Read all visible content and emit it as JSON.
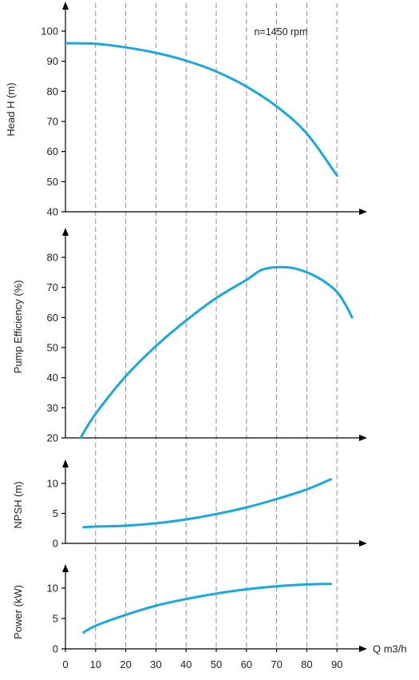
{
  "chart_data": [
    {
      "type": "line",
      "ylabel": "Head H (m)",
      "annotation": "n=1450 rpm",
      "ylim": [
        40,
        100
      ],
      "yticks": [
        "40",
        "50",
        "60",
        "70",
        "80",
        "90",
        "100"
      ],
      "series": [
        {
          "x": [
            0,
            10,
            20,
            30,
            40,
            50,
            60,
            70,
            80,
            90
          ],
          "y": [
            96,
            95.8,
            94.6,
            92.8,
            90.2,
            86.6,
            81.6,
            75,
            66,
            52
          ]
        }
      ]
    },
    {
      "type": "line",
      "ylabel": "Pump Efficiency (%)",
      "ylim": [
        20,
        85
      ],
      "yticks": [
        "20",
        "30",
        "40",
        "50",
        "60",
        "70",
        "80"
      ],
      "series": [
        {
          "x": [
            5,
            10,
            20,
            30,
            40,
            50,
            60,
            65,
            70,
            75,
            80,
            85,
            90,
            93,
            95
          ],
          "y": [
            20,
            28,
            40.5,
            50.5,
            59,
            66.5,
            72.5,
            75.8,
            76.7,
            76.5,
            75,
            72.5,
            68.5,
            64,
            60
          ]
        }
      ]
    },
    {
      "type": "line",
      "ylabel": "NPSH (m)",
      "ylim": [
        0,
        13
      ],
      "yticks": [
        "0",
        "5",
        "10"
      ],
      "series": [
        {
          "x": [
            6,
            10,
            20,
            30,
            40,
            50,
            60,
            70,
            80,
            88
          ],
          "y": [
            2.7,
            2.8,
            2.95,
            3.35,
            4,
            4.9,
            6,
            7.4,
            9,
            10.7
          ]
        }
      ]
    },
    {
      "type": "line",
      "ylabel": "Power (kW)",
      "ylim": [
        0,
        13
      ],
      "yticks": [
        "0",
        "5",
        "10"
      ],
      "series": [
        {
          "x": [
            6,
            10,
            20,
            30,
            40,
            50,
            60,
            70,
            80,
            88
          ],
          "y": [
            2.7,
            3.8,
            5.6,
            7.1,
            8.2,
            9.1,
            9.8,
            10.3,
            10.6,
            10.7
          ]
        }
      ]
    }
  ],
  "x_axis": {
    "label": "Q m3/h",
    "xlim": [
      0,
      95
    ],
    "ticks": [
      "0",
      "10",
      "20",
      "30",
      "40",
      "50",
      "60",
      "70",
      "80",
      "90"
    ],
    "grid_at": [
      10,
      20,
      30,
      40,
      50,
      60,
      70,
      80,
      90
    ]
  },
  "colors": {
    "curve": "#19a9dc",
    "axis": "#000000",
    "grid": "#8a8a8a"
  }
}
